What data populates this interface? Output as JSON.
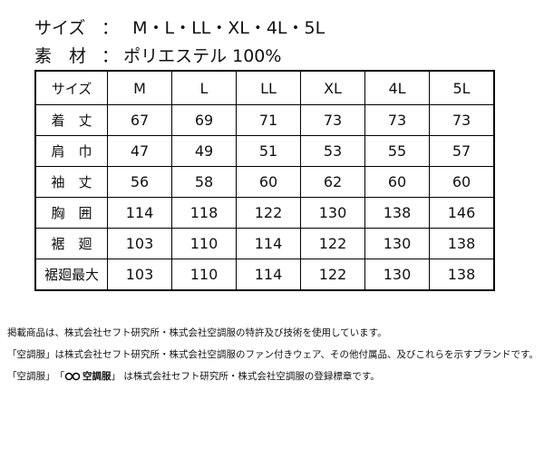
{
  "header": {
    "sizes_label": "サイズ",
    "sizes_sep": "：",
    "sizes": "M・L・LL・XL・4L・5L",
    "material_label": "素　材",
    "material_sep": "：",
    "material": "ポリエステル 100%"
  },
  "table": {
    "columns": [
      "サイズ",
      "M",
      "L",
      "LL",
      "XL",
      "4L",
      "5L"
    ],
    "rows": [
      [
        "着　丈",
        67,
        69,
        71,
        73,
        73,
        73
      ],
      [
        "肩　巾",
        47,
        49,
        51,
        53,
        55,
        57
      ],
      [
        "袖　丈",
        56,
        58,
        60,
        62,
        60,
        60
      ],
      [
        "胸　囲",
        114,
        118,
        122,
        130,
        138,
        146
      ],
      [
        "裾　廻",
        103,
        110,
        114,
        122,
        130,
        138
      ],
      [
        "裾廻最大",
        103,
        110,
        114,
        122,
        130,
        138
      ]
    ]
  },
  "footer": {
    "line1": "掲載商品は、株式会社セフト研究所・株式会社空調服の特許及び技術を使用しています。",
    "line2": "「空調服」は株式会社セフト研究所・株式会社空調服のファン付きウェア、その他付属品、及びこれらを示すブランドです。",
    "line3_prefix": "「空調服」　「",
    "line3_logo": "空調服",
    "line3_suffix": "」 は株式会社セフト研究所・株式会社空調服の登録標章です。"
  }
}
